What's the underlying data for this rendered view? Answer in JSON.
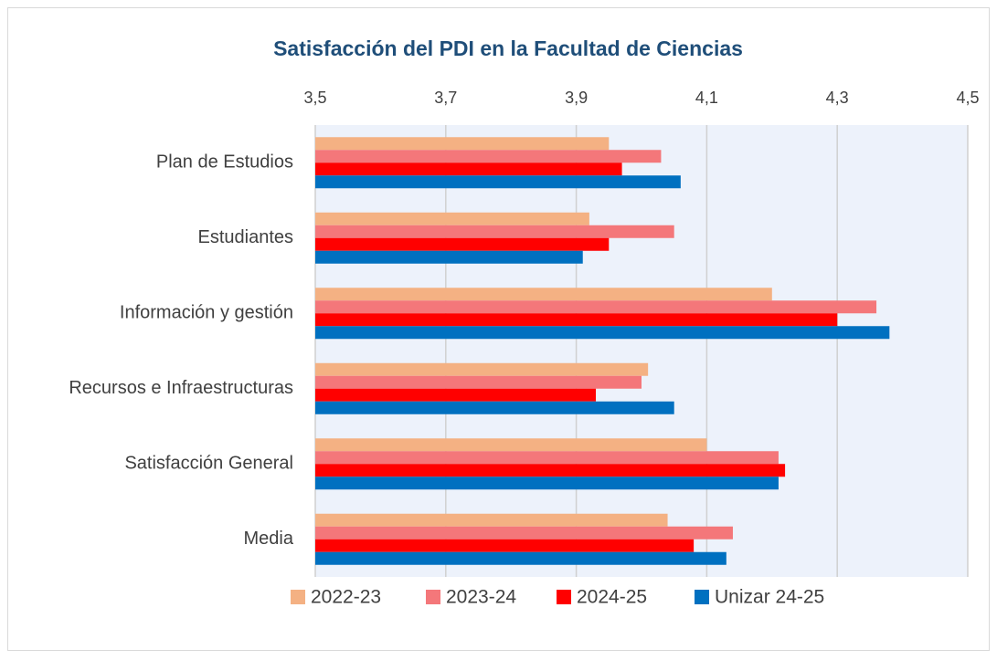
{
  "chart_data": {
    "type": "barh",
    "title": "Satisfacción del PDI en la Facultad de Ciencias",
    "categories": [
      "Plan de Estudios",
      "Estudiantes",
      "Información y gestión",
      "Recursos e Infraestructuras",
      "Satisfacción General",
      "Media"
    ],
    "series": [
      {
        "name": "2022-23",
        "color": "#f4b183",
        "values": [
          3.95,
          3.92,
          4.2,
          4.01,
          4.1,
          4.04
        ]
      },
      {
        "name": "2023-24",
        "color": "#f4777a",
        "values": [
          4.03,
          4.05,
          4.36,
          4.0,
          4.21,
          4.14
        ]
      },
      {
        "name": "2024-25",
        "color": "#ff0000",
        "values": [
          3.97,
          3.95,
          4.3,
          3.93,
          4.22,
          4.08
        ]
      },
      {
        "name": "Unizar 24-25",
        "color": "#0070c0",
        "values": [
          4.06,
          3.91,
          4.38,
          4.05,
          4.21,
          4.13
        ]
      }
    ],
    "xlim": [
      3.5,
      4.5
    ],
    "xticks": [
      {
        "value": 3.5,
        "label": "3,5"
      },
      {
        "value": 3.7,
        "label": "3,7"
      },
      {
        "value": 3.9,
        "label": "3,9"
      },
      {
        "value": 4.1,
        "label": "4,1"
      },
      {
        "value": 4.3,
        "label": "4,3"
      },
      {
        "value": 4.5,
        "label": "4,5"
      }
    ],
    "grid": true,
    "legend": "bottom"
  }
}
